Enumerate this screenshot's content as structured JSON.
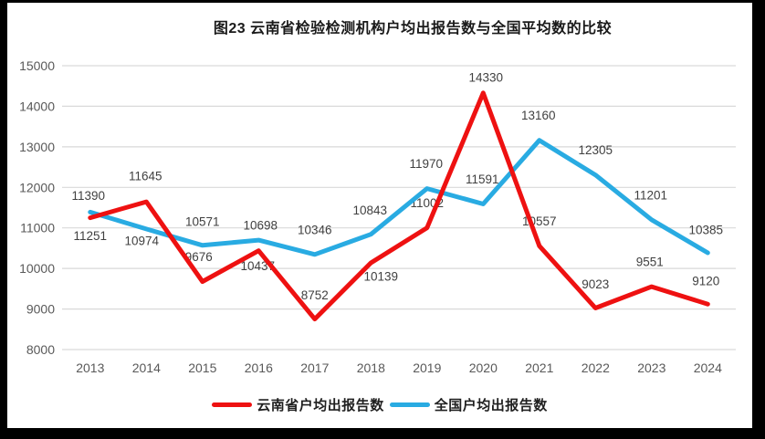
{
  "title": "图23 云南省检验检测机构户均出报告数与全国平均数的比较",
  "colors": {
    "yunnan_line": "#ee1111",
    "national_line": "#29abe2",
    "gridline": "#d9d9d9",
    "axis_text": "#595959",
    "label_text": "#404040",
    "background": "#000000",
    "chart_background": "#ffffff"
  },
  "chart_data": {
    "type": "line",
    "title": "图23 云南省检验检测机构户均出报告数与全国平均数的比较",
    "categories": [
      "2013",
      "2014",
      "2015",
      "2016",
      "2017",
      "2018",
      "2019",
      "2020",
      "2021",
      "2022",
      "2023",
      "2024"
    ],
    "series": [
      {
        "name": "云南省户均出报告数",
        "color_key": "yunnan_line",
        "values": [
          11251,
          11645,
          9676,
          10437,
          8752,
          10139,
          11002,
          14330,
          10557,
          9023,
          9551,
          9120
        ],
        "label_offsets": [
          [
            0,
            20
          ],
          [
            -1,
            -28
          ],
          [
            -4,
            -27
          ],
          [
            -1,
            17
          ],
          [
            0,
            -26
          ],
          [
            11,
            15
          ],
          [
            0,
            -27
          ],
          [
            3,
            -17
          ],
          [
            0,
            -27
          ],
          [
            0,
            -26
          ],
          [
            -2,
            -27
          ],
          [
            -2,
            -25
          ]
        ]
      },
      {
        "name": "全国户均出报告数",
        "color_key": "national_line",
        "values": [
          11390,
          10974,
          10571,
          10698,
          10346,
          10843,
          11970,
          11591,
          13160,
          12305,
          11201,
          10385
        ],
        "label_offsets": [
          [
            -2,
            -18
          ],
          [
            -5,
            13
          ],
          [
            0,
            -26
          ],
          [
            2,
            -16
          ],
          [
            0,
            -27
          ],
          [
            -1,
            -26
          ],
          [
            -1,
            -27
          ],
          [
            -1,
            -27
          ],
          [
            -1,
            -27
          ],
          [
            0,
            -27
          ],
          [
            -1,
            -27
          ],
          [
            -2,
            -25
          ]
        ]
      }
    ],
    "xlabel": "",
    "ylabel": "",
    "ylim": [
      8000,
      15000
    ],
    "ytick_step": 1000,
    "grid": true,
    "data_labels": true,
    "legend_position": "bottom"
  },
  "legend": {
    "items": [
      {
        "label": "云南省户均出报告数"
      },
      {
        "label": "全国户均出报告数"
      }
    ]
  }
}
